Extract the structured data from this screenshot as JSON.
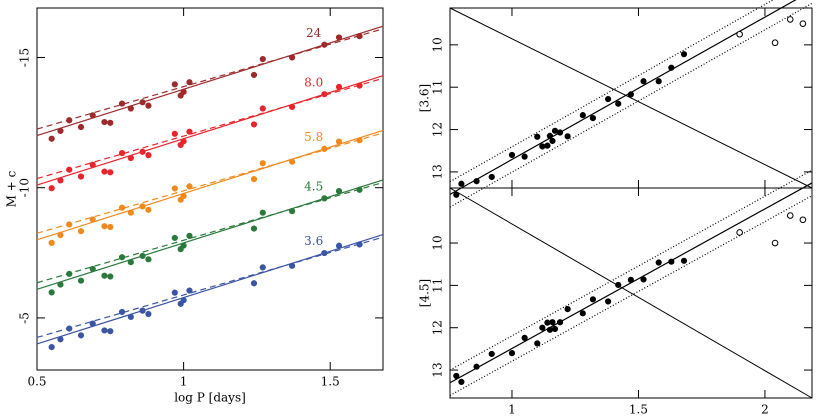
{
  "chart_data": [
    {
      "type": "scatter",
      "xlabel": "log P [days]",
      "ylabel": "M + c",
      "xlim": [
        0.5,
        1.68
      ],
      "ylim": [
        -3,
        -16.9
      ],
      "xticks": [
        0.5,
        1,
        1.5
      ],
      "yticks": [
        -15,
        -10,
        -5
      ],
      "xtick_labels": true,
      "series": [
        {
          "name": "24",
          "color": "#9e2a2b",
          "fit_x": [
            0.5,
            1.68
          ],
          "fit": [
            -12.0,
            -16.2
          ],
          "fit_dashed": [
            -12.25,
            -16.1
          ],
          "x": [
            0.55,
            0.58,
            0.61,
            0.65,
            0.69,
            0.73,
            0.75,
            0.79,
            0.82,
            0.86,
            0.88,
            0.97,
            0.99,
            1.0,
            1.02,
            1.24,
            1.27,
            1.37,
            1.48,
            1.53,
            1.6
          ],
          "values": [
            -11.88,
            -12.18,
            -12.59,
            -12.33,
            -12.78,
            -12.52,
            -12.49,
            -13.23,
            -13.04,
            -13.28,
            -13.15,
            -13.97,
            -13.54,
            -13.68,
            -14.05,
            -14.33,
            -14.94,
            -15.0,
            -15.49,
            -15.77,
            -15.82
          ]
        },
        {
          "name": "8.0",
          "color": "#e8242c",
          "fit_x": [
            0.5,
            1.68
          ],
          "fit": [
            -10.1,
            -14.3
          ],
          "fit_dashed": [
            -10.35,
            -14.2
          ],
          "x": [
            0.55,
            0.58,
            0.61,
            0.65,
            0.69,
            0.73,
            0.75,
            0.79,
            0.82,
            0.86,
            0.88,
            0.97,
            0.99,
            1.0,
            1.02,
            1.24,
            1.27,
            1.37,
            1.48,
            1.53,
            1.6
          ],
          "values": [
            -9.98,
            -10.28,
            -10.69,
            -10.43,
            -10.88,
            -10.62,
            -10.59,
            -11.33,
            -11.14,
            -11.38,
            -11.25,
            -12.07,
            -11.64,
            -11.78,
            -12.15,
            -12.43,
            -13.04,
            -13.1,
            -13.59,
            -13.87,
            -13.92
          ]
        },
        {
          "name": "5.8",
          "color": "#f18a1d",
          "fit_x": [
            0.5,
            1.68
          ],
          "fit": [
            -8.0,
            -12.2
          ],
          "fit_dashed": [
            -8.25,
            -12.1
          ],
          "x": [
            0.55,
            0.58,
            0.61,
            0.65,
            0.69,
            0.73,
            0.75,
            0.79,
            0.82,
            0.86,
            0.88,
            0.97,
            0.99,
            1.0,
            1.02,
            1.24,
            1.27,
            1.37,
            1.48,
            1.53,
            1.6
          ],
          "values": [
            -7.88,
            -8.18,
            -8.59,
            -8.33,
            -8.78,
            -8.52,
            -8.49,
            -9.23,
            -9.04,
            -9.28,
            -9.15,
            -9.97,
            -9.54,
            -9.68,
            -10.05,
            -10.33,
            -10.94,
            -11.0,
            -11.49,
            -11.77,
            -11.82
          ]
        },
        {
          "name": "4.5",
          "color": "#2a7a3c",
          "fit_x": [
            0.5,
            1.68
          ],
          "fit": [
            -6.1,
            -10.3
          ],
          "fit_dashed": [
            -6.35,
            -10.2
          ],
          "x": [
            0.55,
            0.58,
            0.61,
            0.65,
            0.69,
            0.73,
            0.75,
            0.79,
            0.82,
            0.86,
            0.88,
            0.97,
            0.99,
            1.0,
            1.02,
            1.24,
            1.27,
            1.37,
            1.48,
            1.53,
            1.6
          ],
          "values": [
            -5.98,
            -6.28,
            -6.69,
            -6.43,
            -6.88,
            -6.62,
            -6.59,
            -7.33,
            -7.14,
            -7.38,
            -7.25,
            -8.07,
            -7.64,
            -7.78,
            -8.15,
            -8.43,
            -9.04,
            -9.1,
            -9.59,
            -9.87,
            -9.92
          ]
        },
        {
          "name": "3.6",
          "color": "#3b55a6",
          "fit_x": [
            0.5,
            1.68
          ],
          "fit": [
            -4.0,
            -8.2
          ],
          "fit_dashed": [
            -4.25,
            -8.1
          ],
          "x": [
            0.55,
            0.58,
            0.61,
            0.65,
            0.69,
            0.73,
            0.75,
            0.79,
            0.82,
            0.86,
            0.88,
            0.97,
            0.99,
            1.0,
            1.02,
            1.24,
            1.27,
            1.37,
            1.48,
            1.53,
            1.6
          ],
          "values": [
            -3.88,
            -4.18,
            -4.59,
            -4.33,
            -4.78,
            -4.52,
            -4.49,
            -5.23,
            -5.04,
            -5.28,
            -5.15,
            -5.97,
            -5.54,
            -5.68,
            -6.05,
            -6.33,
            -6.94,
            -7.0,
            -7.49,
            -7.77,
            -7.82
          ]
        }
      ]
    },
    {
      "type": "scatter",
      "ylabel": "[3.6]",
      "xlim": [
        0.755,
        2.186
      ],
      "ylim": [
        13.38,
        9.13
      ],
      "xticks": [
        1,
        1.5,
        2
      ],
      "yticks": [
        10,
        11,
        12,
        13
      ],
      "xtick_labels": false,
      "series": [
        {
          "color": "#000000",
          "marker": "filled",
          "fit_x": [
            0.755,
            2.186
          ],
          "fit": [
            13.53,
            8.72
          ],
          "fit_upper": [
            13.23,
            8.42
          ],
          "fit_lower": [
            13.83,
            9.02
          ],
          "x": [
            0.78,
            0.8,
            0.86,
            0.92,
            1.0,
            1.05,
            1.1,
            1.12,
            1.14,
            1.15,
            1.16,
            1.17,
            1.19,
            1.22,
            1.28,
            1.32,
            1.38,
            1.42,
            1.47,
            1.52,
            1.58,
            1.63,
            1.68
          ],
          "values": [
            13.54,
            13.28,
            13.22,
            13.12,
            12.6,
            12.64,
            12.17,
            12.4,
            12.38,
            12.15,
            12.27,
            12.03,
            12.07,
            12.16,
            11.66,
            11.73,
            11.28,
            11.39,
            11.17,
            10.86,
            10.86,
            10.54,
            10.22
          ]
        },
        {
          "color": "#000000",
          "marker": "open",
          "x": [
            1.9,
            2.04,
            2.1,
            2.15
          ],
          "values": [
            9.75,
            9.95,
            9.4,
            9.5
          ]
        }
      ]
    },
    {
      "type": "scatter",
      "xlabel": "log P [days]",
      "ylabel": "[4.5]",
      "xlim": [
        0.755,
        2.186
      ],
      "ylim": [
        13.66,
        8.7
      ],
      "xticks": [
        1,
        1.5,
        2
      ],
      "yticks": [
        10,
        11,
        12,
        13
      ],
      "xtick_labels": true,
      "series": [
        {
          "color": "#000000",
          "marker": "filled",
          "fit_x": [
            0.755,
            2.186
          ],
          "fit": [
            13.3,
            8.58
          ],
          "fit_upper": [
            13.0,
            8.28
          ],
          "fit_lower": [
            13.6,
            8.88
          ],
          "x": [
            0.78,
            0.8,
            0.86,
            0.92,
            1.0,
            1.05,
            1.1,
            1.12,
            1.14,
            1.15,
            1.16,
            1.17,
            1.19,
            1.22,
            1.28,
            1.32,
            1.38,
            1.42,
            1.47,
            1.52,
            1.58,
            1.63,
            1.68
          ],
          "values": [
            13.14,
            13.28,
            12.92,
            12.62,
            12.6,
            12.24,
            12.37,
            12.0,
            11.88,
            12.05,
            11.87,
            12.03,
            11.87,
            11.56,
            11.66,
            11.33,
            11.38,
            10.99,
            10.87,
            10.86,
            10.46,
            10.44,
            10.42
          ]
        },
        {
          "color": "#000000",
          "marker": "open",
          "x": [
            1.9,
            2.04,
            2.1,
            2.15
          ],
          "values": [
            9.75,
            10.0,
            9.35,
            9.45
          ]
        }
      ]
    }
  ]
}
